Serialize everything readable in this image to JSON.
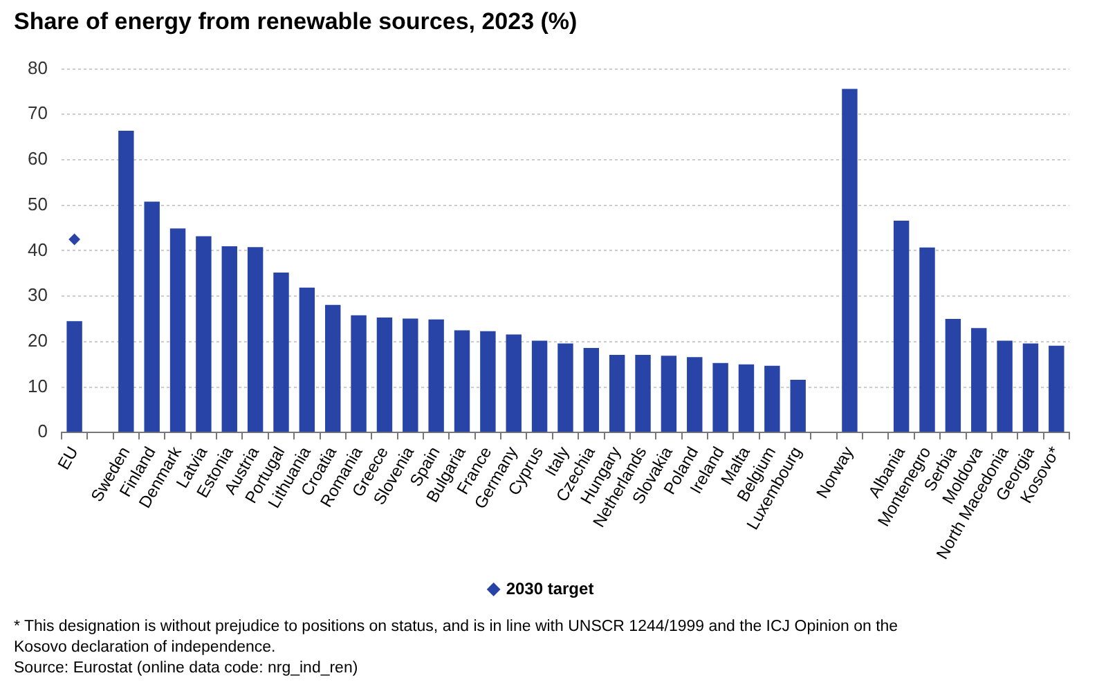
{
  "chart_data": {
    "type": "bar",
    "title": "Share of energy from renewable sources, 2023 (%)",
    "categories": [
      "EU",
      null,
      "Sweden",
      "Finland",
      "Denmark",
      "Latvia",
      "Estonia",
      "Austria",
      "Portugal",
      "Lithuania",
      "Croatia",
      "Romania",
      "Greece",
      "Slovenia",
      "Spain",
      "Bulgaria",
      "France",
      "Germany",
      "Cyprus",
      "Italy",
      "Czechia",
      "Hungary",
      "Netherlands",
      "Slovakia",
      "Poland",
      "Ireland",
      "Malta",
      "Belgium",
      "Luxembourg",
      null,
      "Norway",
      null,
      "Albania",
      "Montenegro",
      "Serbia",
      "Moldova",
      "North Macedonia",
      "Georgia",
      "Kosovo*"
    ],
    "series": [
      {
        "color": "#2744a6",
        "values": [
          24.5,
          null,
          66.4,
          50.8,
          44.9,
          43.2,
          41.0,
          40.8,
          35.2,
          31.9,
          28.1,
          25.8,
          25.3,
          25.1,
          24.9,
          22.5,
          22.3,
          21.6,
          20.2,
          19.6,
          18.6,
          17.1,
          17.1,
          16.9,
          16.6,
          15.3,
          15.0,
          14.7,
          11.6,
          null,
          75.6,
          null,
          46.6,
          40.7,
          25.0,
          23.0,
          20.2,
          19.6,
          19.1
        ]
      },
      {
        "type": "scatter",
        "name": "2030 target",
        "color": "#2744a6",
        "marker": "diamond",
        "x": [
          "EU"
        ],
        "values": [
          42.5
        ]
      }
    ],
    "ylim": [
      0,
      80
    ],
    "yticks": [
      0,
      10,
      20,
      30,
      40,
      50,
      60,
      70,
      80
    ],
    "grid": "y",
    "legend": "bottom",
    "annotations": [
      "* This designation is without prejudice to positions on status, and is in line with UNSCR 1244/1999 and the ICJ Opinion on the Kosovo declaration of independence.",
      "Source: Eurostat (online data code: nrg_ind_ren)"
    ]
  }
}
